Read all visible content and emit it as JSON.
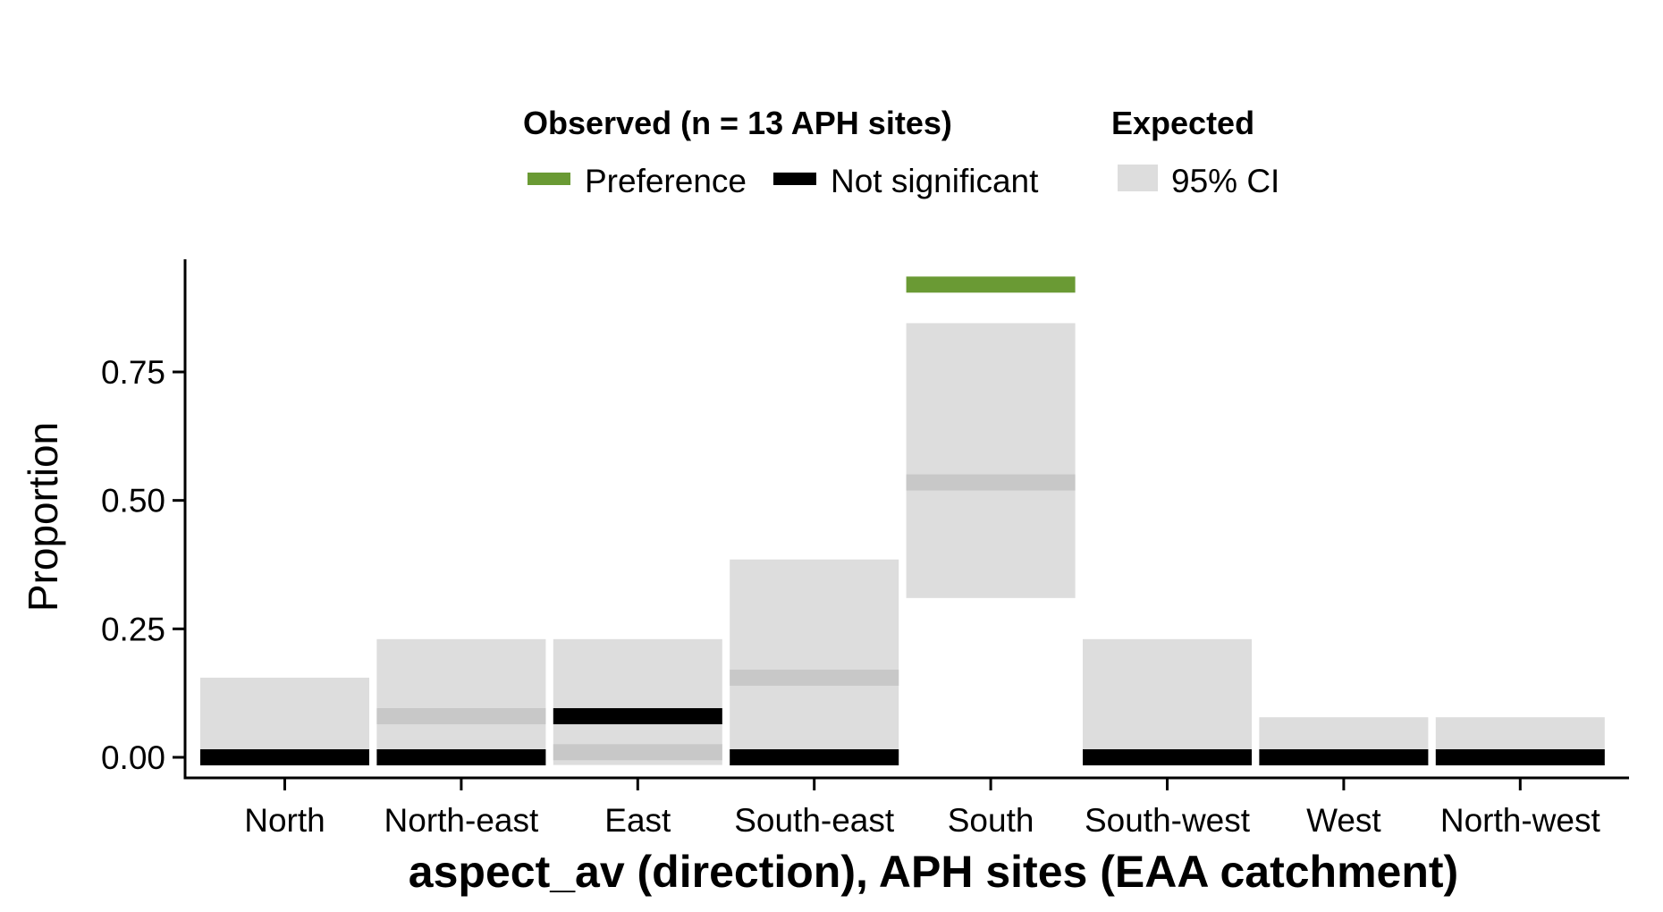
{
  "colors": {
    "preference": "#6a9a34",
    "not_significant": "#000000",
    "ci": "#dddddd",
    "expected_line": "#c8c8c8"
  },
  "legend": {
    "observed_title": "Observed (n = 13 APH sites)",
    "expected_title": "Expected",
    "preference_label": "Preference",
    "not_significant_label": "Not significant",
    "ci_label": "95% CI"
  },
  "chart_data": {
    "type": "bar",
    "xlabel": "aspect_av (direction), APH sites (EAA catchment)",
    "ylabel": "Proportion",
    "ylim": [
      -0.03,
      0.96
    ],
    "yticks": [
      0.0,
      0.25,
      0.5,
      0.75
    ],
    "ytick_labels": [
      "0.00",
      "0.25",
      "0.50",
      "0.75"
    ],
    "categories": [
      "North",
      "North-east",
      "East",
      "South-east",
      "South",
      "South-west",
      "West",
      "North-west"
    ],
    "ci_lower": [
      0.0,
      0.0,
      -0.015,
      0.0,
      0.31,
      0.0,
      0.0,
      0.0
    ],
    "ci_upper": [
      0.155,
      0.23,
      0.23,
      0.385,
      0.845,
      0.23,
      0.078,
      0.078
    ],
    "expected": [
      null,
      0.08,
      0.01,
      0.155,
      0.535,
      null,
      null,
      null
    ],
    "observed": [
      0.0,
      0.0,
      0.08,
      0.0,
      0.92,
      0.0,
      0.0,
      0.0
    ],
    "observed_status": [
      "Not significant",
      "Not significant",
      "Not significant",
      "Not significant",
      "Preference",
      "Not significant",
      "Not significant",
      "Not significant"
    ],
    "grid": false,
    "legend_position": "top"
  }
}
